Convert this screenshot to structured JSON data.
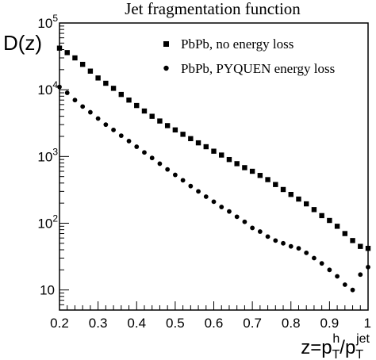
{
  "chart_data": {
    "type": "scatter",
    "title": "Jet fragmentation function",
    "ylabel": {
      "base": "D(z)"
    },
    "xlabel": {
      "lead": "z=p",
      "sup1": "h",
      "sub1": "T",
      "slash": "/p",
      "sup2": "jet",
      "sub2": "T"
    },
    "xlim": [
      0.2,
      1.0
    ],
    "ylim": [
      5,
      100000
    ],
    "yscale": "log",
    "x_ticks": [
      {
        "value": 0.2,
        "label": "0.2"
      },
      {
        "value": 0.3,
        "label": "0.3"
      },
      {
        "value": 0.4,
        "label": "0.4"
      },
      {
        "value": 0.5,
        "label": "0.5"
      },
      {
        "value": 0.6,
        "label": "0.6"
      },
      {
        "value": 0.7,
        "label": "0.7"
      },
      {
        "value": 0.8,
        "label": "0.8"
      },
      {
        "value": 0.9,
        "label": "0.9"
      },
      {
        "value": 1.0,
        "label": "1"
      }
    ],
    "y_ticks": [
      {
        "value": 10,
        "base": "10",
        "exp": ""
      },
      {
        "value": 100,
        "base": "10",
        "exp": "2"
      },
      {
        "value": 1000,
        "base": "10",
        "exp": "3"
      },
      {
        "value": 10000,
        "base": "10",
        "exp": "4"
      },
      {
        "value": 100000,
        "base": "10",
        "exp": "5"
      }
    ],
    "grid": false,
    "legend_position": "top-right",
    "series": [
      {
        "name": "PbPb, no energy loss",
        "marker": "square",
        "color": "#000000",
        "x": [
          0.2,
          0.22,
          0.24,
          0.26,
          0.28,
          0.3,
          0.32,
          0.34,
          0.36,
          0.38,
          0.4,
          0.42,
          0.44,
          0.46,
          0.48,
          0.5,
          0.52,
          0.54,
          0.56,
          0.58,
          0.6,
          0.62,
          0.64,
          0.66,
          0.68,
          0.7,
          0.72,
          0.74,
          0.76,
          0.78,
          0.8,
          0.82,
          0.84,
          0.86,
          0.88,
          0.9,
          0.92,
          0.94,
          0.96,
          0.98,
          1.0
        ],
        "y": [
          42000,
          36000,
          30000,
          24000,
          19000,
          15000,
          12500,
          10500,
          8500,
          7000,
          5800,
          4800,
          4000,
          3400,
          2900,
          2500,
          2150,
          1850,
          1600,
          1400,
          1200,
          1050,
          900,
          780,
          680,
          600,
          520,
          450,
          380,
          320,
          270,
          230,
          195,
          160,
          130,
          110,
          90,
          70,
          55,
          45,
          42
        ]
      },
      {
        "name": "PbPb, PYQUEN energy loss",
        "marker": "circle",
        "color": "#000000",
        "x": [
          0.2,
          0.22,
          0.24,
          0.26,
          0.28,
          0.3,
          0.32,
          0.34,
          0.36,
          0.38,
          0.4,
          0.42,
          0.44,
          0.46,
          0.48,
          0.5,
          0.52,
          0.54,
          0.56,
          0.58,
          0.6,
          0.62,
          0.64,
          0.66,
          0.68,
          0.7,
          0.72,
          0.74,
          0.76,
          0.78,
          0.8,
          0.82,
          0.84,
          0.86,
          0.88,
          0.9,
          0.92,
          0.94,
          0.96,
          0.98,
          1.0
        ],
        "y": [
          11000,
          9000,
          7000,
          5600,
          4600,
          3700,
          3000,
          2500,
          2050,
          1700,
          1400,
          1150,
          950,
          780,
          640,
          530,
          440,
          360,
          300,
          250,
          210,
          175,
          150,
          125,
          105,
          85,
          75,
          63,
          55,
          50,
          45,
          42,
          36,
          30,
          25,
          20,
          16,
          12,
          10,
          17,
          22
        ]
      }
    ]
  }
}
